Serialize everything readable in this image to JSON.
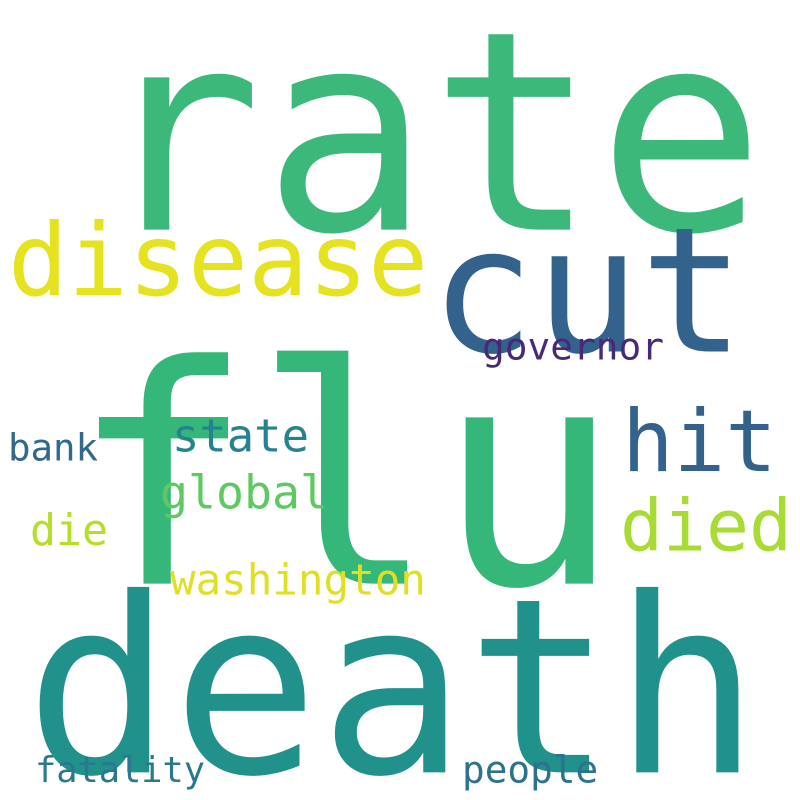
{
  "words": [
    {
      "text": "rate",
      "color": "#3bb87a"
    },
    {
      "text": "flu",
      "color": "#35b779"
    },
    {
      "text": "death",
      "color": "#21918c"
    },
    {
      "text": "cut",
      "color": "#33638d"
    },
    {
      "text": "disease",
      "color": "#e5e21f"
    },
    {
      "text": "hit",
      "color": "#33638d"
    },
    {
      "text": "died",
      "color": "#a8db34"
    },
    {
      "text": "governor",
      "color": "#482878"
    },
    {
      "text": "state",
      "color": "#26828e"
    },
    {
      "text": "global",
      "color": "#5ec962"
    },
    {
      "text": "bank",
      "color": "#31688e"
    },
    {
      "text": "die",
      "color": "#b5de2b"
    },
    {
      "text": "washington",
      "color": "#e0df24"
    },
    {
      "text": "fatality",
      "color": "#2a788e"
    },
    {
      "text": "people",
      "color": "#2c728e"
    }
  ]
}
